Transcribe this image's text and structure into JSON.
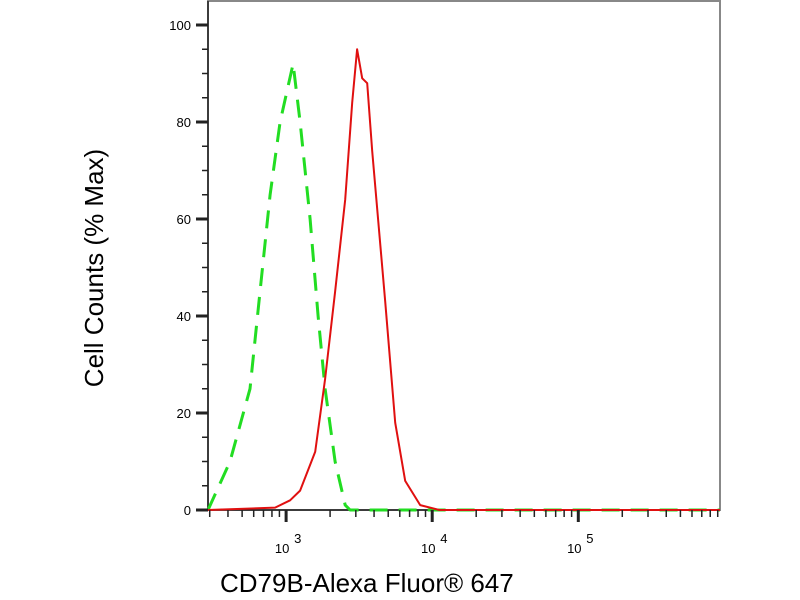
{
  "chart_data": {
    "type": "line",
    "title": "",
    "xlabel": "CD79B-Alexa Fluor® 647",
    "ylabel": "Cell Counts (% Max)",
    "x_scale": "log",
    "xlim": [
      292,
      933000
    ],
    "ylim": [
      0,
      100
    ],
    "grid": false,
    "x_ticks": [
      {
        "base": "10",
        "exp": "3",
        "value": 1000
      },
      {
        "base": "10",
        "exp": "4",
        "value": 10000
      },
      {
        "base": "10",
        "exp": "5",
        "value": 100000
      }
    ],
    "y_ticks": [
      {
        "label": "0",
        "value": 0
      },
      {
        "label": "20",
        "value": 20
      },
      {
        "label": "40",
        "value": 40
      },
      {
        "label": "60",
        "value": 60
      },
      {
        "label": "80",
        "value": 80
      },
      {
        "label": "100",
        "value": 100
      }
    ],
    "series": [
      {
        "style": "dashed",
        "color": "#22dd22",
        "x": [
          292,
          413,
          566,
          663,
          777,
          910,
          1117,
          1247,
          1460,
          1656,
          1850,
          2166,
          2536,
          2742,
          933000
        ],
        "y": [
          0,
          10,
          25,
          45,
          65,
          80,
          92,
          80,
          60,
          40,
          25,
          10,
          1,
          0,
          0
        ]
      },
      {
        "style": "solid",
        "color": "#e01010",
        "x": [
          292,
          841,
          1065,
          1247,
          1581,
          1850,
          2166,
          2536,
          2832,
          3063,
          3318,
          3590,
          3882,
          4766,
          5580,
          6533,
          8279,
          11200,
          933000
        ],
        "y": [
          0,
          0.5,
          2,
          4,
          12,
          27,
          45,
          64,
          84,
          95,
          89,
          88,
          74,
          43,
          18,
          6,
          1,
          0,
          0
        ]
      }
    ]
  }
}
